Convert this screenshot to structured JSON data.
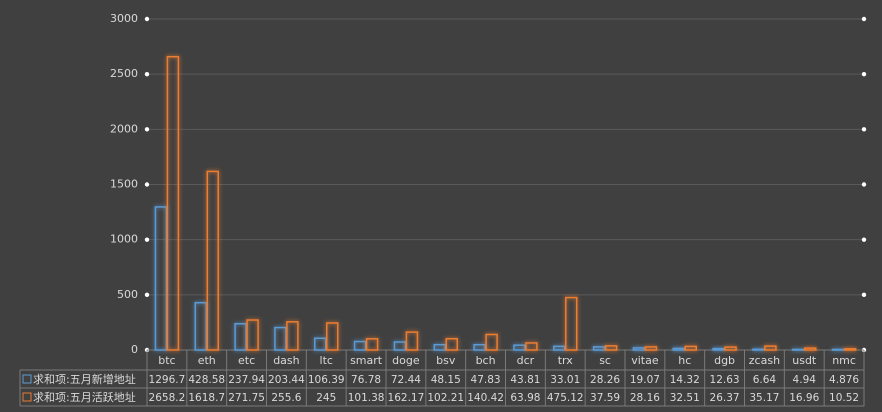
{
  "chart_data": {
    "type": "bar",
    "categories": [
      "btc",
      "eth",
      "etc",
      "dash",
      "ltc",
      "smart",
      "doge",
      "bsv",
      "bch",
      "dcr",
      "trx",
      "sc",
      "vitae",
      "hc",
      "dgb",
      "zcash",
      "usdt",
      "nmc"
    ],
    "series": [
      {
        "name": "求和项:五月新增地址",
        "color": "#5b9bd5",
        "values": [
          1296.7,
          428.58,
          237.94,
          203.44,
          106.39,
          76.78,
          72.44,
          48.15,
          47.83,
          43.81,
          33.01,
          28.26,
          19.07,
          14.32,
          12.63,
          6.64,
          4.94,
          4.876
        ]
      },
      {
        "name": "求和项:五月活跃地址",
        "color": "#ed7d31",
        "values": [
          2658.2,
          1618.7,
          271.75,
          255.6,
          245,
          101.38,
          162.17,
          102.21,
          140.42,
          63.98,
          475.12,
          37.59,
          28.16,
          32.51,
          26.37,
          35.17,
          16.96,
          10.52
        ]
      }
    ],
    "ylim": [
      0,
      3000
    ],
    "yticks": [
      0,
      500,
      1000,
      1500,
      2000,
      2500,
      3000
    ],
    "grid": true
  }
}
